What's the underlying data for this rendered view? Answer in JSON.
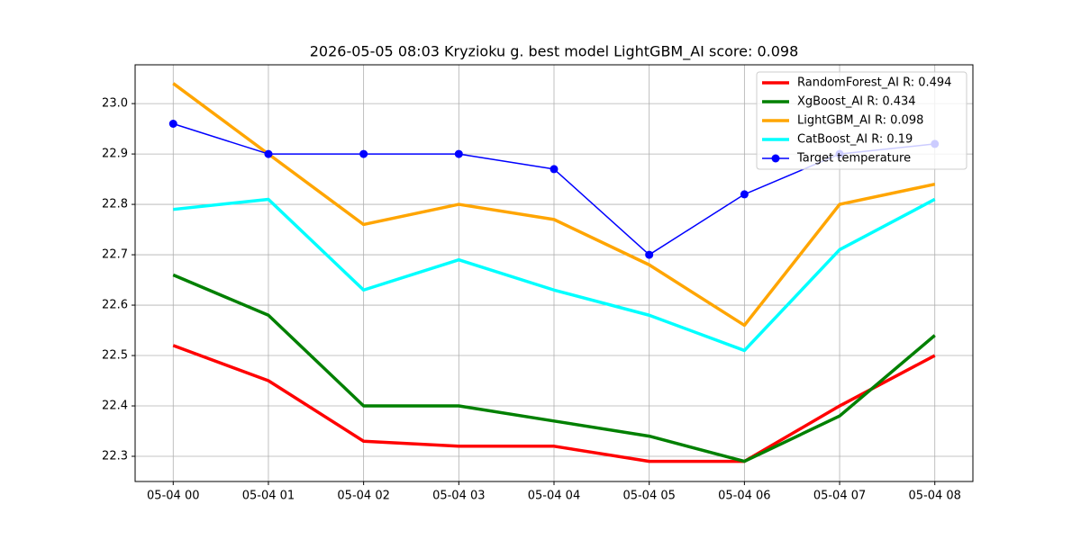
{
  "chart_data": {
    "type": "line",
    "title": "2026-05-05 08:03 Kryzioku g. best model LightGBM_AI score: 0.098",
    "categories": [
      "05-04 00",
      "05-04 01",
      "05-04 02",
      "05-04 03",
      "05-04 04",
      "05-04 05",
      "05-04 06",
      "05-04 07",
      "05-04 08"
    ],
    "series": [
      {
        "name": "RandomForest_AI R: 0.494",
        "color": "#ff0000",
        "values": [
          22.52,
          22.45,
          22.33,
          22.32,
          22.32,
          22.29,
          22.29,
          22.4,
          22.5
        ]
      },
      {
        "name": "XgBoost_AI R: 0.434",
        "color": "#008000",
        "values": [
          22.66,
          22.58,
          22.4,
          22.4,
          22.37,
          22.34,
          22.29,
          22.38,
          22.54
        ]
      },
      {
        "name": "LightGBM_AI R: 0.098",
        "color": "#ffa500",
        "values": [
          23.04,
          22.9,
          22.76,
          22.8,
          22.77,
          22.68,
          22.56,
          22.8,
          22.84
        ]
      },
      {
        "name": "CatBoost_AI R: 0.19",
        "color": "#00ffff",
        "values": [
          22.79,
          22.81,
          22.63,
          22.69,
          22.63,
          22.58,
          22.51,
          22.71,
          22.81
        ]
      },
      {
        "name": "Target temperature",
        "color": "#0000ff",
        "marker": true,
        "values": [
          22.96,
          22.9,
          22.9,
          22.9,
          22.87,
          22.7,
          22.82,
          22.9,
          22.92
        ]
      }
    ],
    "ylim": [
      22.25,
      23.077
    ],
    "yticks": [
      22.3,
      22.4,
      22.5,
      22.6,
      22.7,
      22.8,
      22.9,
      {
        "value": 23.0,
        "label": "23.0"
      }
    ],
    "grid": true,
    "legend": "upper right"
  }
}
